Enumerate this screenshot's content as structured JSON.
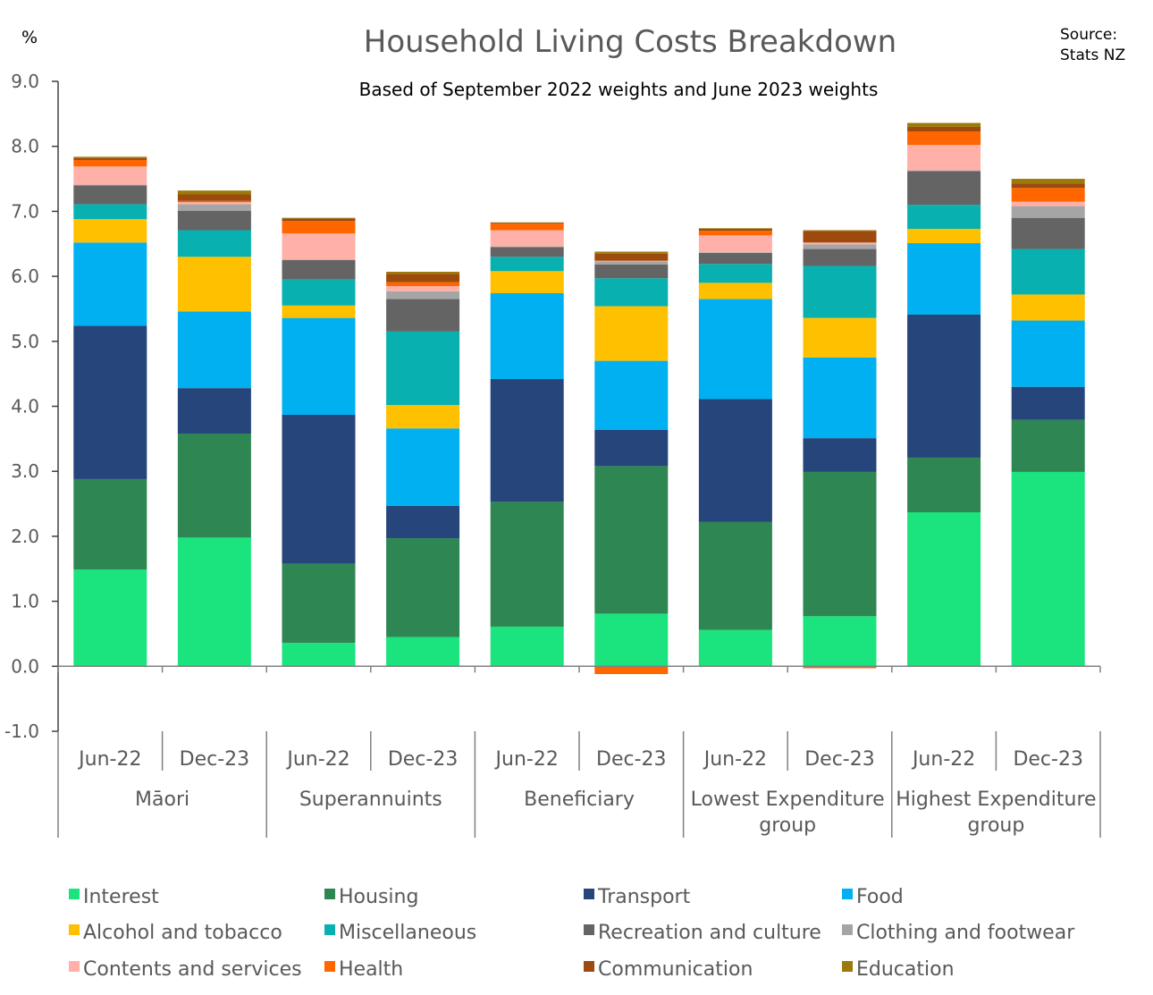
{
  "chart_data": {
    "type": "bar",
    "stacked": true,
    "title": "Household Living Costs Breakdown",
    "subtitle": "Based of September 2022 weights and June 2023 weights",
    "ylabel": "%",
    "source_note": [
      "Source:",
      "Stats NZ"
    ],
    "ylim": [
      -1.0,
      9.0
    ],
    "ytick_step": 1.0,
    "ytick_labels": [
      "-1.0",
      "0.0",
      "1.0",
      "2.0",
      "3.0",
      "4.0",
      "5.0",
      "6.0",
      "7.0",
      "8.0",
      "9.0"
    ],
    "grid": false,
    "legend_position": "bottom",
    "categories": [
      "Jun-22",
      "Dec-23",
      "Jun-22",
      "Dec-23",
      "Jun-22",
      "Dec-23",
      "Jun-22",
      "Dec-23",
      "Jun-22",
      "Dec-23"
    ],
    "groups": [
      {
        "label": [
          "Māori"
        ],
        "span": 2
      },
      {
        "label": [
          "Superannuints"
        ],
        "span": 2
      },
      {
        "label": [
          "Beneficiary"
        ],
        "span": 2
      },
      {
        "label": [
          "Lowest Expenditure",
          "group"
        ],
        "span": 2
      },
      {
        "label": [
          "Highest Expenditure",
          "group"
        ],
        "span": 2
      }
    ],
    "series": [
      {
        "name": "Interest",
        "color": "#1BE37E",
        "values": [
          1.49,
          1.98,
          0.36,
          0.45,
          0.61,
          0.81,
          0.56,
          0.77,
          2.37,
          2.99
        ]
      },
      {
        "name": "Housing",
        "color": "#2E8653",
        "values": [
          1.39,
          1.6,
          1.22,
          1.52,
          1.92,
          2.27,
          1.66,
          2.22,
          0.84,
          0.8
        ]
      },
      {
        "name": "Transport",
        "color": "#26457A",
        "values": [
          2.36,
          0.7,
          2.29,
          0.5,
          1.89,
          0.56,
          1.89,
          0.52,
          2.2,
          0.51
        ]
      },
      {
        "name": "Food",
        "color": "#00B0F0",
        "values": [
          1.28,
          1.18,
          1.49,
          1.19,
          1.32,
          1.06,
          1.54,
          1.24,
          1.1,
          1.02
        ]
      },
      {
        "name": "Alcohol and tobacco",
        "color": "#FFC000",
        "values": [
          0.36,
          0.84,
          0.19,
          0.36,
          0.34,
          0.84,
          0.25,
          0.61,
          0.22,
          0.4
        ]
      },
      {
        "name": "Miscellaneous",
        "color": "#08B0B0",
        "values": [
          0.23,
          0.41,
          0.4,
          1.13,
          0.22,
          0.43,
          0.29,
          0.8,
          0.37,
          0.7
        ]
      },
      {
        "name": "Recreation and culture",
        "color": "#646464",
        "values": [
          0.29,
          0.3,
          0.3,
          0.5,
          0.15,
          0.21,
          0.17,
          0.26,
          0.52,
          0.48
        ]
      },
      {
        "name": "Clothing and footwear",
        "color": "#A5A5A5",
        "values": [
          0.01,
          0.1,
          0.01,
          0.12,
          0.01,
          0.05,
          0.01,
          0.07,
          0.01,
          0.18
        ]
      },
      {
        "name": "Contents and services",
        "color": "#FFB0A8",
        "values": [
          0.28,
          0.03,
          0.4,
          0.08,
          0.25,
          0.01,
          0.26,
          0.03,
          0.39,
          0.07
        ]
      },
      {
        "name": "Health",
        "color": "#FF6600",
        "values": [
          0.1,
          0.02,
          0.19,
          0.06,
          0.1,
          -0.12,
          0.07,
          -0.03,
          0.21,
          0.21
        ]
      },
      {
        "name": "Communication",
        "color": "#9C4A0E",
        "values": [
          0.03,
          0.1,
          0.04,
          0.13,
          0.01,
          0.11,
          0.03,
          0.18,
          0.07,
          0.07
        ]
      },
      {
        "name": "Education",
        "color": "#9C7A0A",
        "values": [
          0.02,
          0.06,
          0.01,
          0.03,
          0.01,
          0.03,
          0.01,
          0.01,
          0.06,
          0.07
        ]
      }
    ]
  }
}
